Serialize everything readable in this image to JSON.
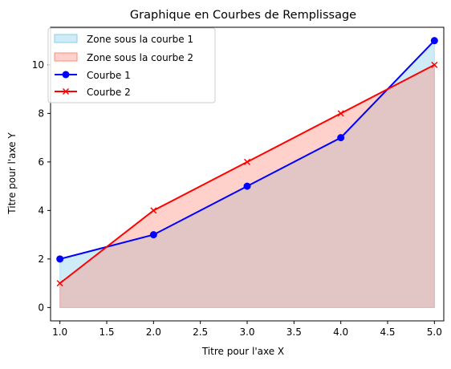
{
  "chart_data": {
    "type": "area",
    "title": "Graphique en Courbes de Remplissage",
    "xlabel": "Titre pour l'axe X",
    "ylabel": "Titre pour l'axe Y",
    "x": [
      1,
      2,
      3,
      4,
      5
    ],
    "xlim": [
      0.9,
      5.1
    ],
    "ylim": [
      -0.55,
      11.55
    ],
    "xticks": [
      "1.0",
      "1.5",
      "2.0",
      "2.5",
      "3.0",
      "3.5",
      "4.0",
      "4.5",
      "5.0"
    ],
    "yticks": [
      "0",
      "2",
      "4",
      "6",
      "8",
      "10"
    ],
    "grid": false,
    "legend_position": "top-left",
    "series": [
      {
        "name": "Courbe 1",
        "fill_name": "Zone sous la courbe 1",
        "values": [
          2,
          3,
          5,
          7,
          11
        ],
        "line_color": "#0000ff",
        "fill_color": "#87ceeb",
        "marker": "circle"
      },
      {
        "name": "Courbe 2",
        "fill_name": "Zone sous la courbe 2",
        "values": [
          1,
          4,
          6,
          8,
          10
        ],
        "line_color": "#ff0000",
        "fill_color": "#ff8c7a",
        "marker": "x"
      }
    ]
  }
}
